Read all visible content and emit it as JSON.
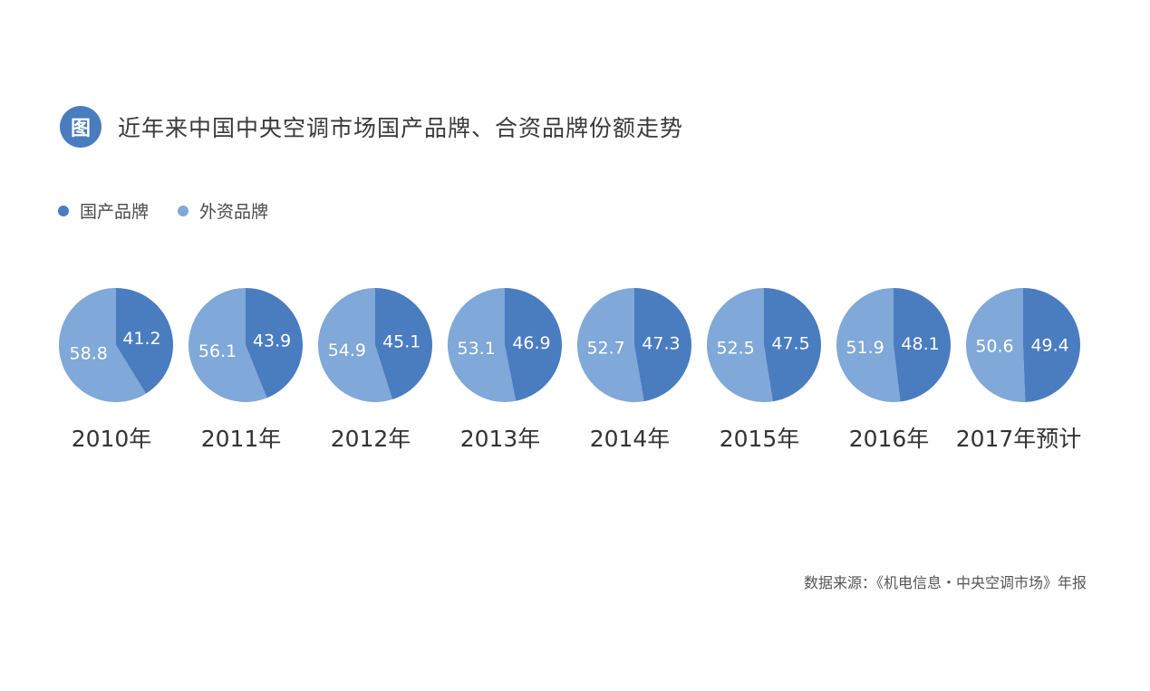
{
  "header": {
    "badge": "图",
    "title": "近年来中国中央空调市场国产品牌、合资品牌份额走势"
  },
  "legend": {
    "items": [
      {
        "label": "国产品牌",
        "color": "#4a7cc0"
      },
      {
        "label": "外资品牌",
        "color": "#80a8d8"
      }
    ]
  },
  "source": "数据来源：《机电信息・中央空调市场》年报",
  "chart_data": {
    "type": "pie",
    "series_names": [
      "国产品牌",
      "外资品牌"
    ],
    "colors": [
      "#4a7cc0",
      "#80a8d8"
    ],
    "categories": [
      "2010年",
      "2011年",
      "2012年",
      "2013年",
      "2014年",
      "2015年",
      "2016年",
      "2017年预计"
    ],
    "domestic": [
      41.2,
      43.9,
      45.1,
      46.9,
      47.3,
      47.5,
      48.1,
      49.4
    ],
    "foreign": [
      58.8,
      56.1,
      54.9,
      53.1,
      52.7,
      52.5,
      51.9,
      50.6
    ],
    "domestic_labels": [
      "41.2",
      "43.9",
      "45.1",
      "46.9",
      "47.3",
      "47.5",
      "48.1",
      "49.4"
    ],
    "foreign_labels": [
      "58.8",
      "56.1",
      "54.9",
      "53.1",
      "52.7",
      "52.5",
      "51.9",
      "50.6"
    ]
  }
}
